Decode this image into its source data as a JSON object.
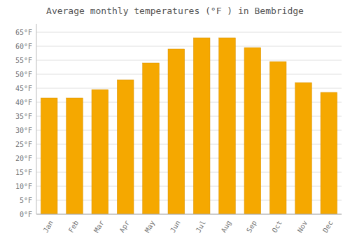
{
  "chart_data": {
    "type": "bar",
    "title": "Average monthly temperatures (°F ) in Bembridge",
    "categories": [
      "Jan",
      "Feb",
      "Mar",
      "Apr",
      "May",
      "Jun",
      "Jul",
      "Aug",
      "Sep",
      "Oct",
      "Nov",
      "Dec"
    ],
    "values": [
      41.5,
      41.5,
      44.5,
      48.0,
      54.0,
      59.0,
      63.0,
      63.0,
      59.5,
      54.5,
      47.0,
      43.5
    ],
    "color": "#F5A800",
    "ylim": [
      0,
      68
    ],
    "yticks": [
      {
        "value": 0,
        "label": "0°F"
      },
      {
        "value": 5,
        "label": "5°F"
      },
      {
        "value": 10,
        "label": "10°F"
      },
      {
        "value": 15,
        "label": "15°F"
      },
      {
        "value": 20,
        "label": "20°F"
      },
      {
        "value": 25,
        "label": "25°F"
      },
      {
        "value": 30,
        "label": "30°F"
      },
      {
        "value": 35,
        "label": "35°F"
      },
      {
        "value": 40,
        "label": "40°F"
      },
      {
        "value": 45,
        "label": "45°F"
      },
      {
        "value": 50,
        "label": "50°F"
      },
      {
        "value": 55,
        "label": "55°F"
      },
      {
        "value": 60,
        "label": "60°F"
      },
      {
        "value": 65,
        "label": "65°F"
      }
    ],
    "grid": true
  }
}
